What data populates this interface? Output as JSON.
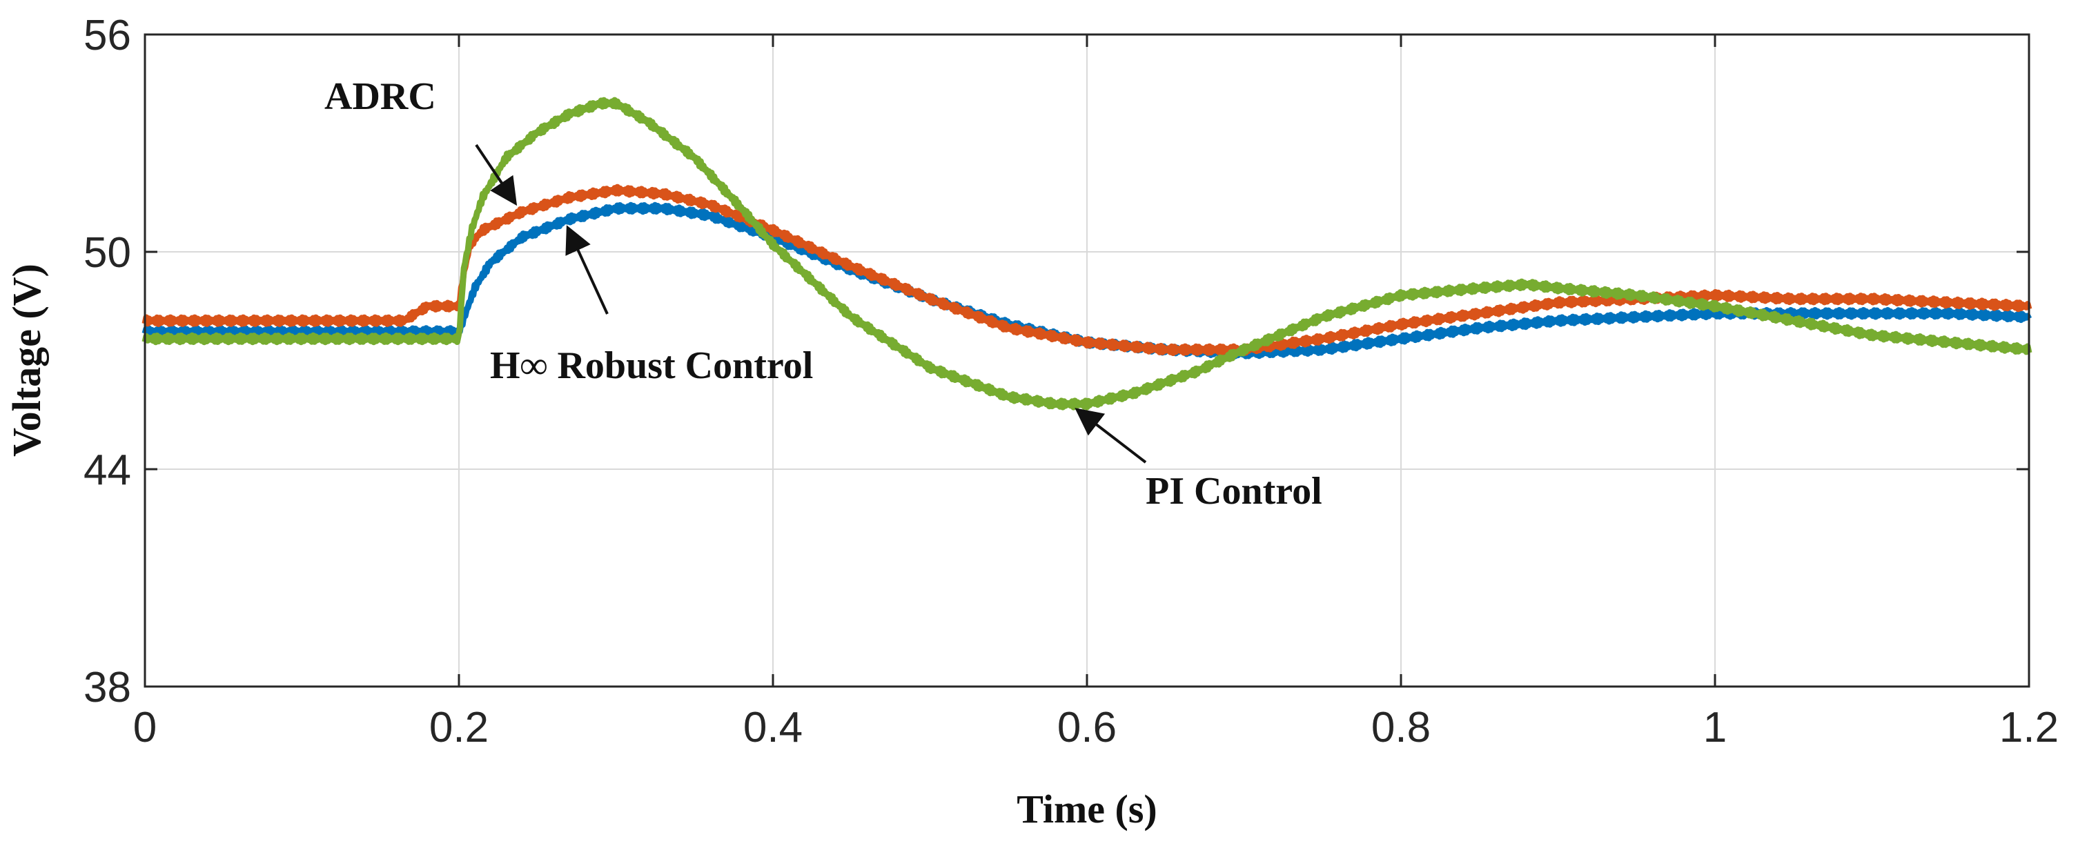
{
  "chart_data": {
    "type": "line",
    "xlabel": "Time (s)",
    "ylabel": "Voltage (V)",
    "xlim": [
      0,
      1.2
    ],
    "ylim": [
      38,
      56
    ],
    "xticks": [
      "0",
      "0.2",
      "0.4",
      "0.6",
      "0.8",
      "1",
      "1.2"
    ],
    "yticks": [
      "38",
      "44",
      "50",
      "56"
    ],
    "grid": true,
    "annotations": [
      {
        "text": "ADRC",
        "series": 1,
        "x": 0.235,
        "y": 51.4
      },
      {
        "text": "H∞ Robust Control",
        "series": 0,
        "x": 0.27,
        "y": 50.6
      },
      {
        "text": "PI Control",
        "series": 2,
        "x": 0.595,
        "y": 45.6
      }
    ],
    "series": [
      {
        "color": "#0072BD",
        "x": [
          0,
          0.1,
          0.17,
          0.2,
          0.205,
          0.21,
          0.22,
          0.24,
          0.27,
          0.3,
          0.33,
          0.36,
          0.4,
          0.45,
          0.5,
          0.55,
          0.6,
          0.65,
          0.7,
          0.75,
          0.8,
          0.85,
          0.9,
          0.95,
          1.0,
          1.05,
          1.1,
          1.15,
          1.2
        ],
        "y": [
          47.8,
          47.8,
          47.8,
          47.8,
          48.4,
          49.0,
          49.7,
          50.4,
          50.9,
          51.2,
          51.2,
          51.0,
          50.4,
          49.5,
          48.7,
          48.0,
          47.5,
          47.3,
          47.2,
          47.3,
          47.6,
          47.9,
          48.1,
          48.2,
          48.3,
          48.3,
          48.3,
          48.3,
          48.2
        ]
      },
      {
        "color": "#D95319",
        "x": [
          0,
          0.1,
          0.165,
          0.18,
          0.2,
          0.203,
          0.207,
          0.215,
          0.24,
          0.27,
          0.3,
          0.33,
          0.36,
          0.4,
          0.45,
          0.5,
          0.55,
          0.6,
          0.65,
          0.7,
          0.75,
          0.8,
          0.85,
          0.9,
          0.95,
          1.0,
          1.05,
          1.1,
          1.15,
          1.2
        ],
        "y": [
          48.1,
          48.1,
          48.1,
          48.5,
          48.5,
          49.4,
          50.2,
          50.6,
          51.1,
          51.5,
          51.7,
          51.6,
          51.3,
          50.6,
          49.6,
          48.7,
          47.9,
          47.5,
          47.3,
          47.3,
          47.6,
          48.0,
          48.3,
          48.6,
          48.7,
          48.8,
          48.7,
          48.7,
          48.6,
          48.5
        ]
      },
      {
        "color": "#77AC30",
        "x": [
          0,
          0.1,
          0.2,
          0.203,
          0.208,
          0.215,
          0.23,
          0.25,
          0.27,
          0.29,
          0.3,
          0.32,
          0.35,
          0.38,
          0.4,
          0.45,
          0.5,
          0.55,
          0.58,
          0.6,
          0.63,
          0.67,
          0.7,
          0.75,
          0.8,
          0.85,
          0.88,
          0.9,
          0.95,
          1.0,
          1.05,
          1.1,
          1.15,
          1.2
        ],
        "y": [
          47.6,
          47.6,
          47.6,
          49.5,
          50.6,
          51.5,
          52.6,
          53.3,
          53.8,
          54.1,
          54.1,
          53.6,
          52.6,
          51.2,
          50.2,
          48.2,
          46.8,
          46.0,
          45.8,
          45.8,
          46.1,
          46.7,
          47.3,
          48.2,
          48.8,
          49.0,
          49.1,
          49.0,
          48.8,
          48.5,
          48.1,
          47.7,
          47.5,
          47.3
        ]
      }
    ]
  }
}
